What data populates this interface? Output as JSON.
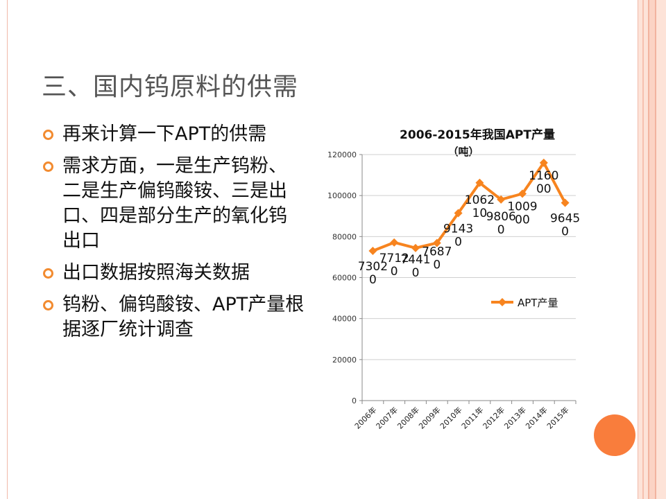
{
  "slide": {
    "title": "三、国内钨原料的供需",
    "bullets": [
      "再来计算一下APT的供需",
      "需求方面，一是生产钨粉、二是生产偏钨酸铵、三是出口、四是部分生产的氧化钨出口",
      "出口数据按照海关数据",
      "钨粉、偏钨酸铵、APT产量根据逐厂统计调查"
    ]
  },
  "colors": {
    "accent": "#f28b30",
    "line": "#f7841f",
    "circle": "#f97d3c",
    "title_text": "#555555"
  },
  "chart_data": {
    "type": "line",
    "title_line1": "2006-2015年我国APT产量",
    "title_line2": "（吨）",
    "categories": [
      "2006年",
      "2007年",
      "2008年",
      "2009年",
      "2010年",
      "2011年",
      "2012年",
      "2013年",
      "2014年",
      "2015年"
    ],
    "series": [
      {
        "name": "APT产量",
        "values": [
          73020,
          77120,
          74410,
          76870,
          91430,
          106210,
          98060,
          100900,
          116000,
          96450
        ]
      }
    ],
    "data_labels": [
      "7302\n0",
      "7712\n0",
      "7441\n0",
      "7687\n0",
      "9143\n0",
      "1062\n10",
      "9806\n0",
      "1009\n00",
      "1160\n00",
      "9645\n0"
    ],
    "yticks": [
      "0",
      "20000",
      "40000",
      "60000",
      "80000",
      "100000",
      "120000"
    ],
    "ylim": [
      0,
      120000
    ],
    "grid": true,
    "legend_position": "right"
  }
}
